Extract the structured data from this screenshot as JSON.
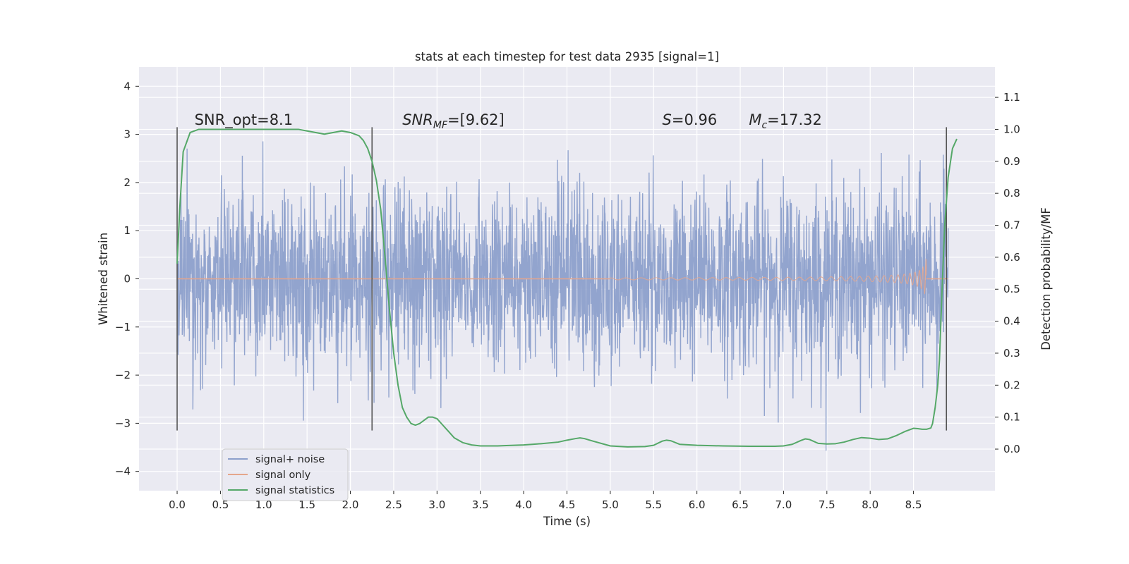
{
  "chart_data": {
    "type": "line",
    "title": "stats at each timestep for test data 2935 [signal=1]",
    "xlabel": "Time (s)",
    "ylabel_left": "Whitened strain",
    "ylabel_right": "Detection probability/MF",
    "xlim": [
      -0.44,
      9.44
    ],
    "ylim_left": [
      -4.4,
      4.4
    ],
    "ylim_right": [
      -0.13,
      1.195
    ],
    "grid": true,
    "legend_position": "lower-left",
    "xticks": [
      "0.0",
      "0.5",
      "1.0",
      "1.5",
      "2.0",
      "2.5",
      "3.0",
      "3.5",
      "4.0",
      "4.5",
      "5.0",
      "5.5",
      "6.0",
      "6.5",
      "7.0",
      "7.5",
      "8.0",
      "8.5"
    ],
    "xtick_values": [
      0,
      0.5,
      1,
      1.5,
      2,
      2.5,
      3,
      3.5,
      4,
      4.5,
      5,
      5.5,
      6,
      6.5,
      7,
      7.5,
      8,
      8.5
    ],
    "yticks_left": [
      "−4",
      "−3",
      "−2",
      "−1",
      "0",
      "1",
      "2",
      "3",
      "4"
    ],
    "ytick_values_left": [
      -4,
      -3,
      -2,
      -1,
      0,
      1,
      2,
      3,
      4
    ],
    "yticks_right": [
      "0.0",
      "0.1",
      "0.2",
      "0.3",
      "0.4",
      "0.5",
      "0.6",
      "0.7",
      "0.8",
      "0.9",
      "1.0",
      "1.1"
    ],
    "ytick_values_right": [
      0,
      0.1,
      0.2,
      0.3,
      0.4,
      0.5,
      0.6,
      0.7,
      0.8,
      0.9,
      1.0,
      1.1
    ],
    "annotations": [
      {
        "text": "SNR_opt=8.1",
        "x": 0.2,
        "y": 3.2,
        "style": "plain"
      },
      {
        "main": "SNR",
        "sub": "MF",
        "rest": "=[9.62]",
        "x": 2.6,
        "y": 3.2,
        "style": "math"
      },
      {
        "main": "S",
        "sub": "",
        "rest": "=0.96",
        "x": 5.6,
        "y": 3.2,
        "style": "math"
      },
      {
        "main": "M",
        "sub": "c",
        "rest": "=17.32",
        "x": 6.6,
        "y": 3.2,
        "style": "math"
      }
    ],
    "vertical_lines": [
      {
        "x": 0.0,
        "ymin": -3.15,
        "ymax": 3.15
      },
      {
        "x": 2.25,
        "ymin": -3.15,
        "ymax": 3.15
      },
      {
        "x": 8.88,
        "ymin": -3.15,
        "ymax": 3.15
      }
    ],
    "series": [
      {
        "name": "signal+ noise",
        "color": "#8da0cb",
        "axis": "left",
        "description_range": {
          "x": [
            0,
            8.9
          ],
          "approx_std": 0.95,
          "min": -4.0,
          "max": 4.0
        }
      },
      {
        "name": "signal only",
        "color": "#e5a68c",
        "axis": "left",
        "chirp": {
          "start": 5.0,
          "merger": 8.65,
          "peak_amplitude": 1.45
        }
      },
      {
        "name": "signal statistics",
        "color": "#55a868",
        "axis": "right",
        "x": [
          0.0,
          0.03,
          0.07,
          0.15,
          0.25,
          0.4,
          0.6,
          0.8,
          1.0,
          1.2,
          1.4,
          1.5,
          1.6,
          1.7,
          1.8,
          1.9,
          2.0,
          2.1,
          2.15,
          2.2,
          2.25,
          2.3,
          2.35,
          2.4,
          2.45,
          2.5,
          2.55,
          2.6,
          2.65,
          2.7,
          2.75,
          2.8,
          2.85,
          2.9,
          2.95,
          3.0,
          3.05,
          3.1,
          3.2,
          3.3,
          3.4,
          3.5,
          3.6,
          3.7,
          3.8,
          4.0,
          4.2,
          4.4,
          4.5,
          4.6,
          4.65,
          4.7,
          4.8,
          5.0,
          5.2,
          5.4,
          5.5,
          5.6,
          5.65,
          5.7,
          5.8,
          6.0,
          6.3,
          6.6,
          6.9,
          7.0,
          7.1,
          7.2,
          7.25,
          7.3,
          7.4,
          7.5,
          7.6,
          7.7,
          7.8,
          7.9,
          8.0,
          8.1,
          8.2,
          8.3,
          8.4,
          8.5,
          8.55,
          8.6,
          8.65,
          8.7,
          8.72,
          8.75,
          8.78,
          8.8,
          8.83,
          8.86,
          8.9,
          8.95,
          9.0
        ],
        "values": [
          0.58,
          0.75,
          0.93,
          0.99,
          1.0,
          1.0,
          1.0,
          1.0,
          1.0,
          1.0,
          1.0,
          0.995,
          0.99,
          0.985,
          0.99,
          0.995,
          0.99,
          0.98,
          0.965,
          0.94,
          0.9,
          0.84,
          0.75,
          0.6,
          0.44,
          0.3,
          0.2,
          0.13,
          0.1,
          0.08,
          0.075,
          0.08,
          0.09,
          0.1,
          0.1,
          0.095,
          0.08,
          0.065,
          0.035,
          0.02,
          0.013,
          0.01,
          0.01,
          0.01,
          0.011,
          0.013,
          0.017,
          0.022,
          0.028,
          0.033,
          0.035,
          0.033,
          0.025,
          0.01,
          0.007,
          0.008,
          0.012,
          0.025,
          0.028,
          0.026,
          0.015,
          0.012,
          0.01,
          0.009,
          0.009,
          0.01,
          0.015,
          0.027,
          0.032,
          0.03,
          0.018,
          0.016,
          0.017,
          0.022,
          0.03,
          0.036,
          0.034,
          0.03,
          0.032,
          0.042,
          0.055,
          0.065,
          0.064,
          0.062,
          0.062,
          0.066,
          0.08,
          0.13,
          0.2,
          0.28,
          0.5,
          0.7,
          0.85,
          0.94,
          0.97
        ]
      }
    ]
  },
  "legend": [
    {
      "label": "signal+ noise",
      "color": "#8da0cb"
    },
    {
      "label": "signal only",
      "color": "#e5a68c"
    },
    {
      "label": "signal statistics",
      "color": "#55a868"
    }
  ],
  "style": {
    "axes_bg": "#eaeaf2",
    "grid_color": "#ffffff",
    "vline_color": "#555555"
  }
}
